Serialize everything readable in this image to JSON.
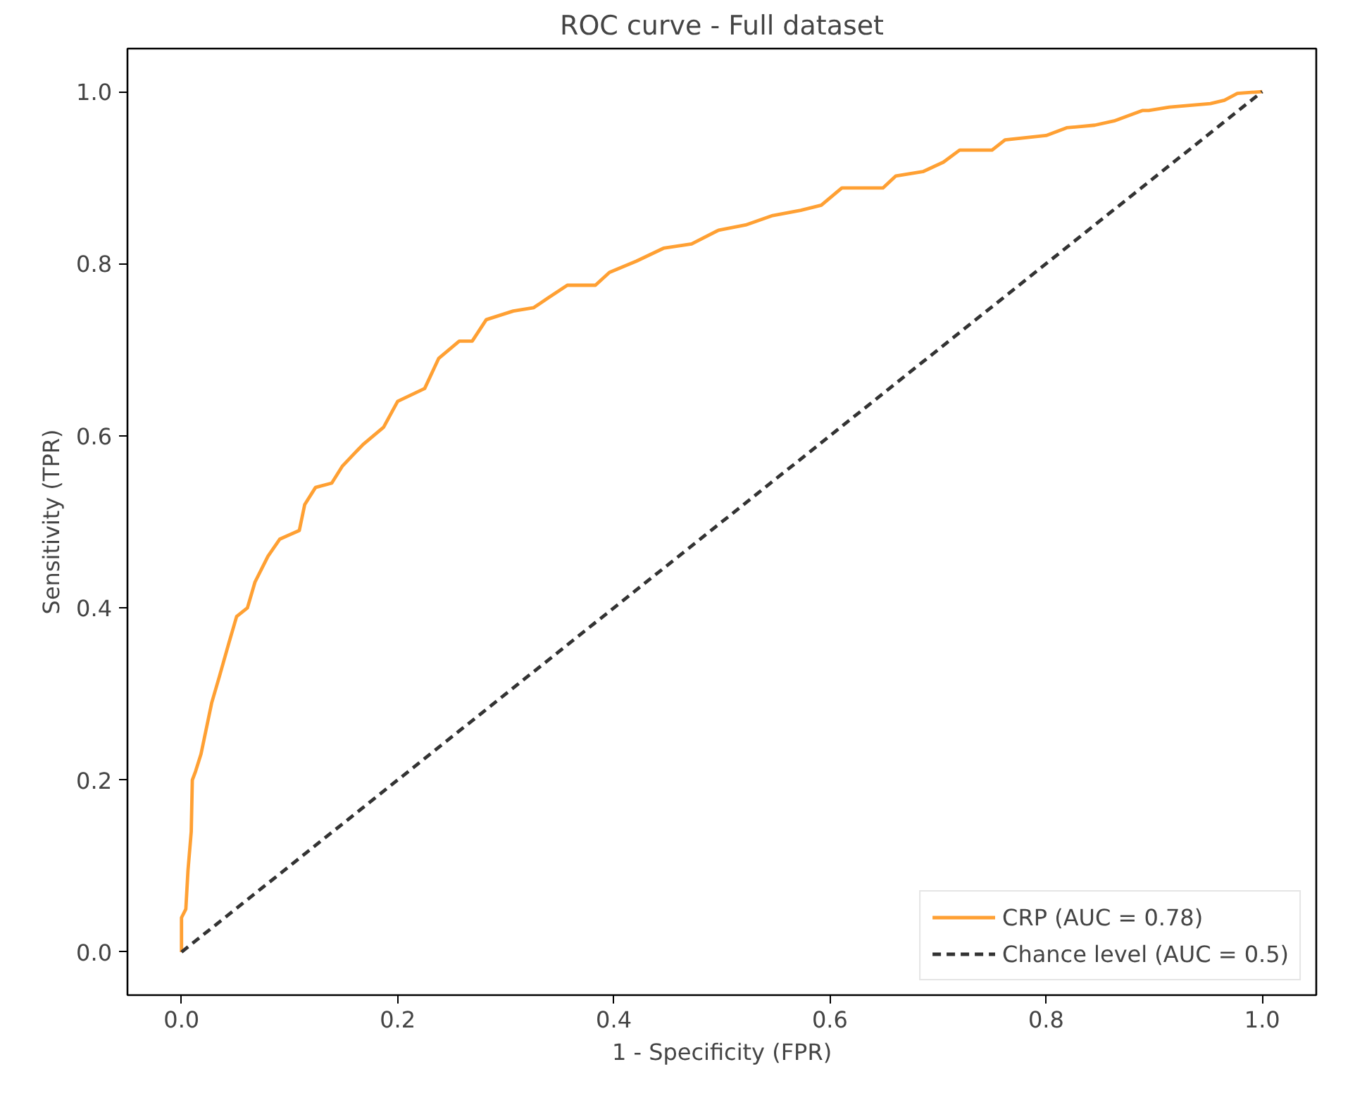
{
  "chart_data": {
    "type": "line",
    "title": "ROC curve - Full dataset",
    "xlabel": "1 - Specificity (FPR)",
    "ylabel": "Sensitivity (TPR)",
    "xlim": [
      -0.05,
      1.05
    ],
    "ylim": [
      -0.05,
      1.05
    ],
    "xticks": [
      {
        "value": 0,
        "label": "0.0"
      },
      {
        "value": 0.2,
        "label": "0.2"
      },
      {
        "value": 0.4,
        "label": "0.4"
      },
      {
        "value": 0.6,
        "label": "0.6"
      },
      {
        "value": 0.8,
        "label": "0.8"
      },
      {
        "value": 1,
        "label": "1.0"
      }
    ],
    "yticks": [
      {
        "value": 0,
        "label": "0.0"
      },
      {
        "value": 0.2,
        "label": "0.2"
      },
      {
        "value": 0.4,
        "label": "0.4"
      },
      {
        "value": 0.6,
        "label": "0.6"
      },
      {
        "value": 0.8,
        "label": "0.8"
      },
      {
        "value": 1,
        "label": "1.0"
      }
    ],
    "grid": false,
    "legend": "bottom right",
    "marker": "none",
    "series": [
      {
        "name": "CRP (AUC = 0.78)",
        "color": "#ffa033",
        "line_style": "solid",
        "x": [
          0,
          0,
          0.004,
          0.006,
          0.009,
          0.01,
          0.013,
          0.018,
          0.023,
          0.028,
          0.035,
          0.044,
          0.051,
          0.061,
          0.068,
          0.08,
          0.091,
          0.109,
          0.114,
          0.124,
          0.139,
          0.149,
          0.168,
          0.187,
          0.2,
          0.225,
          0.238,
          0.257,
          0.269,
          0.282,
          0.307,
          0.326,
          0.339,
          0.357,
          0.383,
          0.396,
          0.421,
          0.446,
          0.472,
          0.497,
          0.522,
          0.547,
          0.573,
          0.592,
          0.611,
          0.649,
          0.661,
          0.686,
          0.705,
          0.72,
          0.75,
          0.762,
          0.8,
          0.819,
          0.845,
          0.863,
          0.889,
          0.895,
          0.914,
          0.952,
          0.965,
          0.977,
          1.0
        ],
        "values": [
          0,
          0.04,
          0.05,
          0.095,
          0.14,
          0.2,
          0.21,
          0.23,
          0.26,
          0.29,
          0.32,
          0.36,
          0.39,
          0.4,
          0.43,
          0.46,
          0.48,
          0.49,
          0.52,
          0.54,
          0.545,
          0.565,
          0.59,
          0.61,
          0.64,
          0.655,
          0.69,
          0.71,
          0.71,
          0.735,
          0.745,
          0.749,
          0.76,
          0.775,
          0.775,
          0.79,
          0.803,
          0.818,
          0.823,
          0.839,
          0.845,
          0.856,
          0.862,
          0.868,
          0.888,
          0.888,
          0.902,
          0.907,
          0.918,
          0.932,
          0.932,
          0.944,
          0.949,
          0.958,
          0.961,
          0.966,
          0.978,
          0.978,
          0.982,
          0.986,
          0.99,
          0.998,
          1.0
        ]
      },
      {
        "name": "Chance level (AUC = 0.5)",
        "color": "#333333",
        "line_style": "dashed",
        "x": [
          0,
          1
        ],
        "values": [
          0,
          1
        ]
      }
    ]
  }
}
